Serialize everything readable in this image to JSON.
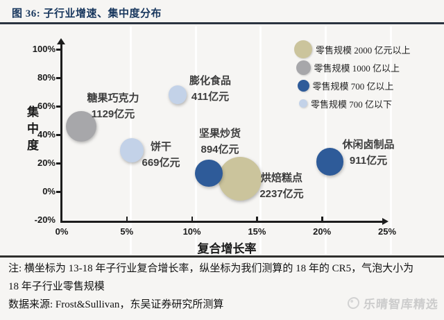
{
  "figure": {
    "title": "图 36:  子行业增速、集中度分布",
    "note_line1": "注: 横坐标为 13-18 年子行业复合增长率，纵坐标为我们测算的 18 年的 CR5，气泡大小为",
    "note_line2": "18 年子行业零售规模",
    "source_line": "数据来源: Frost&Sullivan，东吴证券研究所测算",
    "watermark": "乐晴智库精选"
  },
  "colors": {
    "title_navy": "#17365d",
    "tan_2000plus": "#cbc49c",
    "gray_1000plus": "#a7a7aa",
    "darkblue_700plus": "#2e5b99",
    "lightblue_under700": "#c3d2e8",
    "axis": "#1c1c1c"
  },
  "chart_data": {
    "type": "scatter",
    "title": "子行业增速、集中度分布",
    "xlabel": "复合增长率",
    "ylabel": "集中度",
    "xlim": [
      0,
      25
    ],
    "ylim": [
      -20,
      100
    ],
    "x_tick_labels": [
      "0%",
      "5%",
      "10%",
      "15%",
      "20%",
      "25%"
    ],
    "x_tick_values": [
      0,
      5,
      10,
      15,
      20,
      25
    ],
    "y_tick_labels": [
      "100%",
      "80%",
      "60%",
      "40%",
      "20%",
      "0%",
      "-20%"
    ],
    "y_tick_values": [
      100,
      80,
      60,
      40,
      20,
      0,
      -20
    ],
    "grid": "faint vertical lines at x ticks",
    "legend_position": "top-right",
    "series": [
      {
        "name": "糖果巧克力",
        "value_label": "1129亿元",
        "growth_pct": 1.5,
        "cr5_pct": 46,
        "retail_yi": 1129,
        "size_class": "零售规模 1000 亿以上",
        "color": "#a7a7aa"
      },
      {
        "name": "饼干",
        "value_label": "669亿元",
        "growth_pct": 5.4,
        "cr5_pct": 29,
        "retail_yi": 669,
        "size_class": "零售规模 700 亿以下",
        "color": "#c3d2e8"
      },
      {
        "name": "膨化食品",
        "value_label": "411亿元",
        "growth_pct": 8.9,
        "cr5_pct": 68,
        "retail_yi": 411,
        "size_class": "零售规模 700 亿以下",
        "color": "#c3d2e8"
      },
      {
        "name": "坚果炒货",
        "value_label": "894亿元",
        "growth_pct": 11.3,
        "cr5_pct": 13,
        "retail_yi": 894,
        "size_class": "零售规模 700 亿以上",
        "color": "#2e5b99"
      },
      {
        "name": "烘焙糕点",
        "value_label": "2237亿元",
        "growth_pct": 13.7,
        "cr5_pct": 9,
        "retail_yi": 2237,
        "size_class": "零售规模 2000 亿元以上",
        "color": "#cbc49c"
      },
      {
        "name": "休闲卤制品",
        "value_label": "911亿元",
        "growth_pct": 20.6,
        "cr5_pct": 21,
        "retail_yi": 911,
        "size_class": "零售规模 700 亿以上",
        "color": "#2e5b99"
      }
    ],
    "legend": [
      {
        "label": "零售规模 2000 亿元以上",
        "color": "#cbc49c"
      },
      {
        "label": "零售规模 1000 亿以上",
        "color": "#a7a7aa"
      },
      {
        "label": "零售规模 700 亿以上",
        "color": "#2e5b99"
      },
      {
        "label": "零售规模 700 亿以下",
        "color": "#c3d2e8"
      }
    ]
  }
}
